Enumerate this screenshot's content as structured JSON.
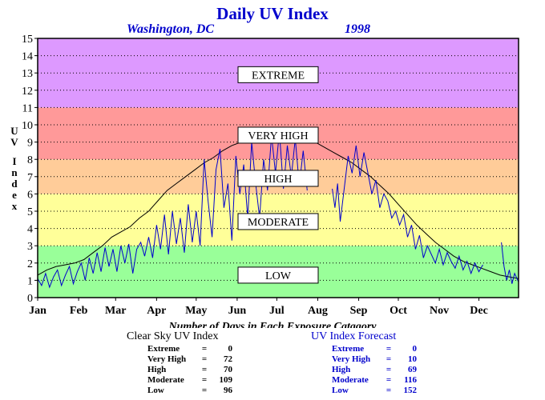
{
  "title": "Daily UV Index",
  "location": "Washington, DC",
  "year": "1998",
  "footer_title": "Number of Days in Each Exposure Catagory",
  "clear_sky": {
    "label": "Clear Sky UV Index",
    "rows": [
      {
        "name": "Extreme",
        "value": "0"
      },
      {
        "name": "Very High",
        "value": "72"
      },
      {
        "name": "High",
        "value": "70"
      },
      {
        "name": "Moderate",
        "value": "109"
      },
      {
        "name": "Low",
        "value": "96"
      }
    ]
  },
  "forecast": {
    "label": "UV Index Forecast",
    "rows": [
      {
        "name": "Extreme",
        "value": "0"
      },
      {
        "name": "Very High",
        "value": "10"
      },
      {
        "name": "High",
        "value": "69"
      },
      {
        "name": "Moderate",
        "value": "116"
      },
      {
        "name": "Low",
        "value": "152"
      }
    ]
  },
  "colors": {
    "low": "#99ff99",
    "moderate": "#ffff99",
    "high": "#ffcc99",
    "very_high": "#ff9999",
    "extreme": "#dd99ff",
    "clear_sky_line": "#000000",
    "forecast_line": "#0000cc",
    "title": "#0000cc"
  },
  "chart_data": {
    "type": "line",
    "title": "Daily UV Index",
    "ylabel": "UV Index",
    "ylim": [
      0,
      15
    ],
    "xlim": [
      1,
      365
    ],
    "yticks": [
      "0",
      "1",
      "2",
      "3",
      "4",
      "5",
      "6",
      "7",
      "8",
      "9",
      "10",
      "11",
      "12",
      "13",
      "14",
      "15"
    ],
    "month_labels": [
      "Jan",
      "Feb",
      "Mar",
      "Apr",
      "May",
      "Jun",
      "Jul",
      "Aug",
      "Sep",
      "Oct",
      "Nov",
      "Dec"
    ],
    "month_start_days": [
      1,
      32,
      60,
      91,
      121,
      152,
      182,
      213,
      244,
      274,
      305,
      335
    ],
    "grid": true,
    "bands": [
      {
        "label": "LOW",
        "from": 0,
        "to": 3,
        "color": "#99ff99",
        "label_y": 1.3
      },
      {
        "label": "MODERATE",
        "from": 3,
        "to": 6,
        "color": "#ffff99",
        "label_y": 4.4
      },
      {
        "label": "HIGH",
        "from": 6,
        "to": 8,
        "color": "#ffcc99",
        "label_y": 6.9
      },
      {
        "label": "VERY HIGH",
        "from": 8,
        "to": 11,
        "color": "#ff9999",
        "label_y": 9.4
      },
      {
        "label": "EXTREME",
        "from": 11,
        "to": 15,
        "color": "#dd99ff",
        "label_y": 12.9
      }
    ],
    "series": [
      {
        "name": "Clear Sky UV Index",
        "color": "#000000",
        "points": [
          [
            1,
            1.3
          ],
          [
            8,
            1.6
          ],
          [
            15,
            1.8
          ],
          [
            22,
            1.9
          ],
          [
            29,
            2.0
          ],
          [
            36,
            2.2
          ],
          [
            43,
            2.6
          ],
          [
            50,
            3.0
          ],
          [
            57,
            3.5
          ],
          [
            64,
            3.8
          ],
          [
            71,
            4.1
          ],
          [
            78,
            4.6
          ],
          [
            85,
            5.0
          ],
          [
            92,
            5.6
          ],
          [
            99,
            6.2
          ],
          [
            106,
            6.6
          ],
          [
            113,
            7.0
          ],
          [
            120,
            7.4
          ],
          [
            127,
            7.8
          ],
          [
            134,
            8.1
          ],
          [
            141,
            8.5
          ],
          [
            148,
            8.8
          ],
          [
            155,
            9.0
          ],
          [
            162,
            9.2
          ],
          [
            169,
            9.3
          ],
          [
            176,
            9.4
          ],
          [
            183,
            9.4
          ],
          [
            190,
            9.3
          ],
          [
            197,
            9.3
          ],
          [
            204,
            9.2
          ],
          [
            211,
            9.0
          ],
          [
            218,
            8.7
          ],
          [
            225,
            8.4
          ],
          [
            232,
            8.1
          ],
          [
            239,
            7.8
          ],
          [
            246,
            7.4
          ],
          [
            253,
            7.0
          ],
          [
            260,
            6.5
          ],
          [
            267,
            6.0
          ],
          [
            274,
            5.4
          ],
          [
            281,
            4.8
          ],
          [
            288,
            4.2
          ],
          [
            295,
            3.7
          ],
          [
            302,
            3.2
          ],
          [
            309,
            2.8
          ],
          [
            316,
            2.4
          ],
          [
            323,
            2.1
          ],
          [
            330,
            1.9
          ],
          [
            337,
            1.7
          ],
          [
            344,
            1.5
          ],
          [
            351,
            1.3
          ],
          [
            358,
            1.2
          ],
          [
            365,
            1.1
          ]
        ]
      },
      {
        "name": "UV Index Forecast",
        "color": "#0000cc",
        "points": [
          [
            1,
            1.1
          ],
          [
            4,
            0.7
          ],
          [
            7,
            1.4
          ],
          [
            10,
            0.6
          ],
          [
            13,
            1.2
          ],
          [
            16,
            1.6
          ],
          [
            19,
            0.7
          ],
          [
            22,
            1.3
          ],
          [
            25,
            1.8
          ],
          [
            28,
            0.8
          ],
          [
            31,
            1.5
          ],
          [
            34,
            2.0
          ],
          [
            37,
            1.0
          ],
          [
            40,
            2.3
          ],
          [
            43,
            1.4
          ],
          [
            46,
            2.6
          ],
          [
            49,
            1.5
          ],
          [
            52,
            2.9
          ],
          [
            55,
            1.8
          ],
          [
            58,
            2.8
          ],
          [
            61,
            1.5
          ],
          [
            64,
            3.0
          ],
          [
            67,
            2.0
          ],
          [
            70,
            3.1
          ],
          [
            73,
            1.4
          ],
          [
            76,
            2.8
          ],
          [
            79,
            3.2
          ],
          [
            82,
            2.4
          ],
          [
            85,
            3.5
          ],
          [
            88,
            2.3
          ],
          [
            91,
            4.2
          ],
          [
            94,
            2.8
          ],
          [
            97,
            4.8
          ],
          [
            100,
            2.5
          ],
          [
            103,
            5.0
          ],
          [
            106,
            3.1
          ],
          [
            109,
            4.6
          ],
          [
            112,
            2.6
          ],
          [
            115,
            5.4
          ],
          [
            118,
            3.2
          ],
          [
            121,
            5.0
          ],
          [
            124,
            3.0
          ],
          [
            127,
            8.0
          ],
          [
            130,
            5.6
          ],
          [
            133,
            3.5
          ],
          [
            136,
            7.4
          ],
          [
            139,
            8.6
          ],
          [
            142,
            5.2
          ],
          [
            145,
            6.6
          ],
          [
            148,
            3.3
          ],
          [
            151,
            8.2
          ],
          [
            154,
            6.0
          ],
          [
            157,
            7.7
          ],
          [
            160,
            4.6
          ],
          [
            163,
            9.0
          ],
          [
            166,
            6.6
          ],
          [
            169,
            4.6
          ],
          [
            172,
            8.0
          ],
          [
            175,
            6.2
          ],
          [
            178,
            9.4
          ],
          [
            181,
            7.2
          ],
          [
            184,
            9.6
          ],
          [
            187,
            6.3
          ],
          [
            190,
            8.8
          ],
          [
            193,
            7.0
          ],
          [
            196,
            9.2
          ],
          [
            199,
            6.5
          ],
          [
            202,
            8.5
          ],
          [
            205,
            6.2
          ]
        ]
      },
      {
        "name": "UV Index Forecast",
        "color": "#0000cc",
        "points": [
          [
            224,
            6.3
          ],
          [
            226,
            5.2
          ],
          [
            228,
            6.6
          ],
          [
            230,
            4.4
          ],
          [
            236,
            8.2
          ],
          [
            239,
            7.2
          ],
          [
            242,
            8.8
          ],
          [
            245,
            7.0
          ],
          [
            248,
            8.4
          ],
          [
            251,
            7.2
          ],
          [
            254,
            6.0
          ],
          [
            257,
            6.8
          ],
          [
            260,
            5.2
          ],
          [
            263,
            6.0
          ],
          [
            266,
            5.6
          ],
          [
            269,
            4.6
          ],
          [
            272,
            5.0
          ],
          [
            275,
            4.2
          ],
          [
            278,
            4.8
          ],
          [
            281,
            3.5
          ],
          [
            284,
            4.2
          ],
          [
            287,
            2.8
          ],
          [
            290,
            3.6
          ],
          [
            293,
            2.3
          ],
          [
            296,
            3.0
          ],
          [
            299,
            2.5
          ],
          [
            302,
            2.0
          ],
          [
            305,
            2.8
          ],
          [
            308,
            1.9
          ],
          [
            311,
            2.6
          ],
          [
            314,
            2.1
          ],
          [
            317,
            1.7
          ],
          [
            320,
            2.4
          ],
          [
            323,
            1.6
          ],
          [
            326,
            2.1
          ],
          [
            329,
            1.4
          ],
          [
            332,
            2.0
          ],
          [
            335,
            1.5
          ],
          [
            338,
            1.9
          ]
        ]
      },
      {
        "name": "UV Index Forecast",
        "color": "#0000cc",
        "points": [
          [
            352,
            3.2
          ],
          [
            354,
            1.8
          ],
          [
            356,
            1.0
          ],
          [
            358,
            1.6
          ],
          [
            360,
            0.8
          ],
          [
            362,
            1.4
          ],
          [
            365,
            0.9
          ]
        ]
      }
    ]
  }
}
